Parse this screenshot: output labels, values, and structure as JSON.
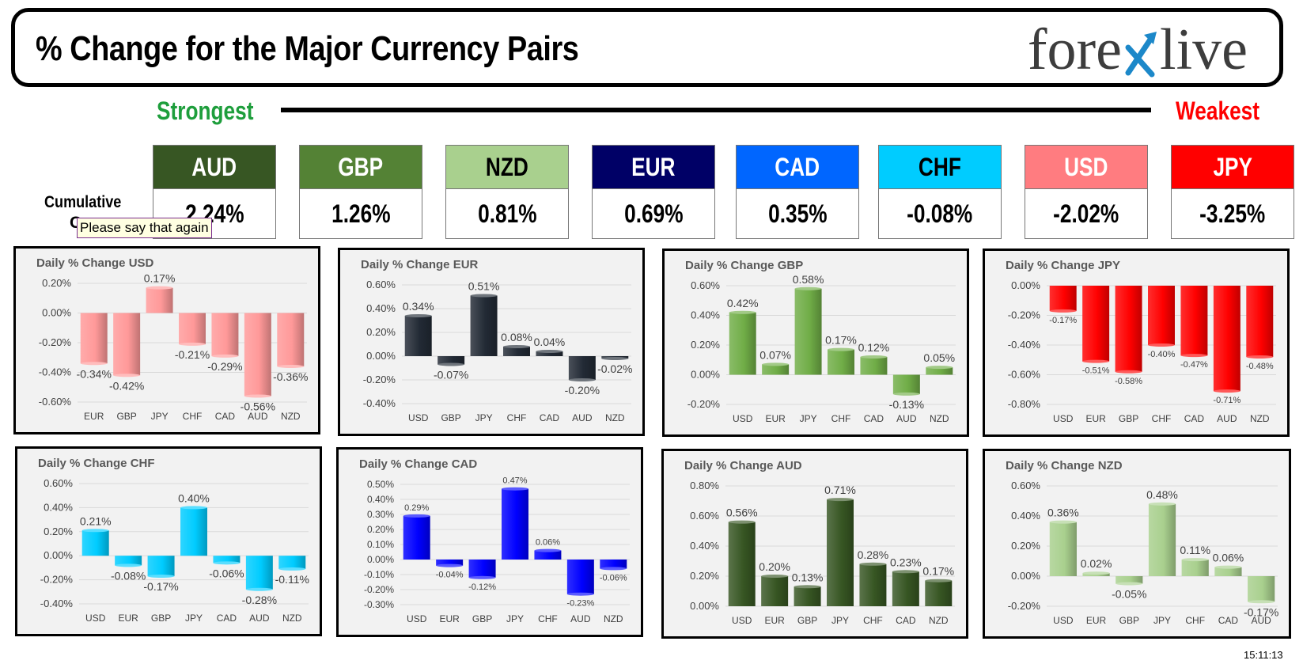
{
  "header": {
    "title": "% Change for the Major Currency Pairs",
    "logo_left": "fore",
    "logo_right": "live",
    "logo_x_color": "#1c88c9"
  },
  "scale": {
    "strongest": "Strongest",
    "weakest": "Weakest"
  },
  "cumulative": {
    "label_line1": "Cumulative",
    "label_line2": "C"
  },
  "tooltip": "Please say that again",
  "currencies": [
    {
      "code": "AUD",
      "value": "2.24%",
      "bg": "#375623",
      "fg": "#ffffff"
    },
    {
      "code": "GBP",
      "value": "1.26%",
      "bg": "#548235",
      "fg": "#ffffff"
    },
    {
      "code": "NZD",
      "value": "0.81%",
      "bg": "#a9d08e",
      "fg": "#000000"
    },
    {
      "code": "EUR",
      "value": "0.69%",
      "bg": "#000066",
      "fg": "#ffffff"
    },
    {
      "code": "CAD",
      "value": "0.35%",
      "bg": "#0066ff",
      "fg": "#ffffff"
    },
    {
      "code": "CHF",
      "value": "-0.08%",
      "bg": "#00ccff",
      "fg": "#000000"
    },
    {
      "code": "USD",
      "value": "-2.02%",
      "bg": "#ff7c80",
      "fg": "#ffffff"
    },
    {
      "code": "JPY",
      "value": "-3.25%",
      "bg": "#ff0000",
      "fg": "#ffffff"
    }
  ],
  "chart_data": [
    {
      "type": "bar",
      "title": "Daily % Change USD",
      "color": "#ff9999",
      "categories": [
        "EUR",
        "GBP",
        "JPY",
        "CHF",
        "CAD",
        "AUD",
        "NZD"
      ],
      "values": [
        -0.34,
        -0.42,
        0.17,
        -0.21,
        -0.29,
        -0.56,
        -0.36
      ],
      "labels": [
        "-0.34%",
        "-0.42%",
        "0.17%",
        "-0.21%",
        "-0.29%",
        "-0.56%",
        "-0.36%"
      ],
      "ylim": [
        -0.6,
        0.2
      ],
      "ytick_values": [
        0.2,
        0,
        -0.2,
        -0.4,
        -0.6
      ],
      "ytick_labels": [
        "0.20%",
        "0.00%",
        "-0.20%",
        "-0.40%",
        "-0.60%"
      ]
    },
    {
      "type": "bar",
      "title": "Daily % Change EUR",
      "color": "#222a35",
      "categories": [
        "USD",
        "GBP",
        "JPY",
        "CHF",
        "CAD",
        "AUD",
        "NZD"
      ],
      "values": [
        0.34,
        -0.07,
        0.51,
        0.08,
        0.04,
        -0.2,
        -0.02
      ],
      "labels": [
        "0.34%",
        "-0.07%",
        "0.51%",
        "0.08%",
        "0.04%",
        "-0.20%",
        "-0.02%"
      ],
      "ylim": [
        -0.4,
        0.6
      ],
      "ytick_values": [
        0.6,
        0.4,
        0.2,
        0,
        -0.2,
        -0.4
      ],
      "ytick_labels": [
        "0.60%",
        "0.40%",
        "0.20%",
        "0.00%",
        "-0.20%",
        "-0.40%"
      ]
    },
    {
      "type": "bar",
      "title": "Daily % Change GBP",
      "color": "#70ad47",
      "categories": [
        "USD",
        "EUR",
        "JPY",
        "CHF",
        "CAD",
        "AUD",
        "NZD"
      ],
      "values": [
        0.42,
        0.07,
        0.58,
        0.17,
        0.12,
        -0.13,
        0.05
      ],
      "labels": [
        "0.42%",
        "0.07%",
        "0.58%",
        "0.17%",
        "0.12%",
        "-0.13%",
        "0.05%"
      ],
      "ylim": [
        -0.2,
        0.6
      ],
      "ytick_values": [
        0.6,
        0.4,
        0.2,
        0,
        -0.2
      ],
      "ytick_labels": [
        "0.60%",
        "0.40%",
        "0.20%",
        "0.00%",
        "-0.20%"
      ]
    },
    {
      "type": "bar",
      "title": "Daily % Change JPY",
      "color": "#ff0000",
      "categories": [
        "USD",
        "EUR",
        "GBP",
        "CHF",
        "CAD",
        "AUD",
        "NZD"
      ],
      "values": [
        -0.17,
        -0.51,
        -0.58,
        -0.4,
        -0.47,
        -0.71,
        -0.48
      ],
      "labels": [
        "-0.17%",
        "-0.51%",
        "-0.58%",
        "-0.40%",
        "-0.47%",
        "-0.71%",
        "-0.48%"
      ],
      "ylim": [
        -0.8,
        0
      ],
      "ytick_values": [
        0,
        -0.2,
        -0.4,
        -0.6,
        -0.8
      ],
      "ytick_labels": [
        "0.00%",
        "-0.20%",
        "-0.40%",
        "-0.60%",
        "-0.80%"
      ]
    },
    {
      "type": "bar",
      "title": "Daily % Change CHF",
      "color": "#00ccff",
      "categories": [
        "USD",
        "EUR",
        "GBP",
        "JPY",
        "CAD",
        "AUD",
        "NZD"
      ],
      "values": [
        0.21,
        -0.08,
        -0.17,
        0.4,
        -0.06,
        -0.28,
        -0.11
      ],
      "labels": [
        "0.21%",
        "-0.08%",
        "-0.17%",
        "0.40%",
        "-0.06%",
        "-0.28%",
        "-0.11%"
      ],
      "ylim": [
        -0.4,
        0.6
      ],
      "ytick_values": [
        0.6,
        0.4,
        0.2,
        0,
        -0.2,
        -0.4
      ],
      "ytick_labels": [
        "0.60%",
        "0.40%",
        "0.20%",
        "0.00%",
        "-0.20%",
        "-0.40%"
      ]
    },
    {
      "type": "bar",
      "title": "Daily % Change CAD",
      "color": "#0000ff",
      "categories": [
        "USD",
        "EUR",
        "GBP",
        "JPY",
        "CHF",
        "AUD",
        "NZD"
      ],
      "values": [
        0.29,
        -0.04,
        -0.12,
        0.47,
        0.06,
        -0.23,
        -0.06
      ],
      "labels": [
        "0.29%",
        "-0.04%",
        "-0.12%",
        "0.47%",
        "0.06%",
        "-0.23%",
        "-0.06%"
      ],
      "ylim": [
        -0.3,
        0.5
      ],
      "ytick_values": [
        0.5,
        0.4,
        0.3,
        0.2,
        0.1,
        0,
        -0.1,
        -0.2,
        -0.3
      ],
      "ytick_labels": [
        "0.50%",
        "0.40%",
        "0.30%",
        "0.20%",
        "0.10%",
        "0.00%",
        "-0.10%",
        "-0.20%",
        "-0.30%"
      ]
    },
    {
      "type": "bar",
      "title": "Daily % Change AUD",
      "color": "#375623",
      "categories": [
        "USD",
        "EUR",
        "GBP",
        "JPY",
        "CHF",
        "CAD",
        "NZD"
      ],
      "values": [
        0.56,
        0.2,
        0.13,
        0.71,
        0.28,
        0.23,
        0.17
      ],
      "labels": [
        "0.56%",
        "0.20%",
        "0.13%",
        "0.71%",
        "0.28%",
        "0.23%",
        "0.17%"
      ],
      "ylim": [
        0,
        0.8
      ],
      "ytick_values": [
        0.8,
        0.6,
        0.4,
        0.2,
        0
      ],
      "ytick_labels": [
        "0.80%",
        "0.60%",
        "0.40%",
        "0.20%",
        "0.00%"
      ]
    },
    {
      "type": "bar",
      "title": "Daily % Change NZD",
      "color": "#a9d08e",
      "categories": [
        "USD",
        "EUR",
        "GBP",
        "JPY",
        "CHF",
        "CAD",
        "AUD"
      ],
      "values": [
        0.36,
        0.02,
        -0.05,
        0.48,
        0.11,
        0.06,
        -0.17
      ],
      "labels": [
        "0.36%",
        "0.02%",
        "-0.05%",
        "0.48%",
        "0.11%",
        "0.06%",
        "-0.17%"
      ],
      "ylim": [
        -0.2,
        0.6
      ],
      "ytick_values": [
        0.6,
        0.4,
        0.2,
        0,
        -0.2
      ],
      "ytick_labels": [
        "0.60%",
        "0.40%",
        "0.20%",
        "0.00%",
        "-0.20%"
      ]
    }
  ],
  "timestamp": "15:11:13"
}
